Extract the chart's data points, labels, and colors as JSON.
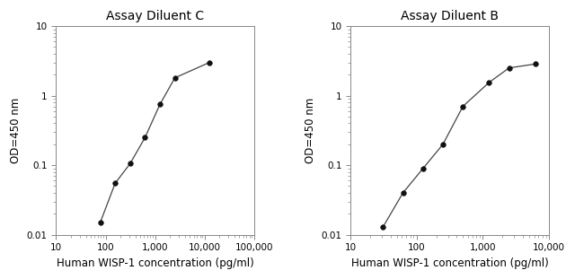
{
  "left": {
    "title": "Assay Diluent C",
    "x": [
      78,
      156,
      312,
      625,
      1250,
      2500,
      12500
    ],
    "y": [
      0.015,
      0.055,
      0.105,
      0.25,
      0.75,
      1.8,
      3.0
    ],
    "xlim": [
      10,
      100000
    ],
    "ylim": [
      0.01,
      10
    ],
    "xticks": [
      10,
      100,
      1000,
      10000,
      100000
    ],
    "xtick_labels": [
      "10",
      "100",
      "1,000",
      "10,000",
      "100,000"
    ],
    "yticks": [
      0.01,
      0.1,
      1,
      10
    ],
    "ytick_labels": [
      "0.01",
      "0.1",
      "1",
      "10"
    ]
  },
  "right": {
    "title": "Assay Diluent B",
    "x": [
      31,
      62,
      125,
      250,
      500,
      1250,
      2500,
      6250
    ],
    "y": [
      0.013,
      0.04,
      0.09,
      0.2,
      0.7,
      1.55,
      2.5,
      2.85
    ],
    "xlim": [
      10,
      10000
    ],
    "ylim": [
      0.01,
      10
    ],
    "xticks": [
      10,
      100,
      1000,
      10000
    ],
    "xtick_labels": [
      "10",
      "100",
      "1,000",
      "10,000"
    ],
    "yticks": [
      0.01,
      0.1,
      1,
      10
    ],
    "ytick_labels": [
      "0.01",
      "0.1",
      "1",
      "10"
    ]
  },
  "xlabel": "Human WISP-1 concentration (pg/ml)",
  "ylabel": "OD=450 nm",
  "line_color": "#444444",
  "marker_color": "#111111",
  "bg_color": "#ffffff",
  "title_fontsize": 10,
  "label_fontsize": 8.5,
  "tick_fontsize": 7.5
}
